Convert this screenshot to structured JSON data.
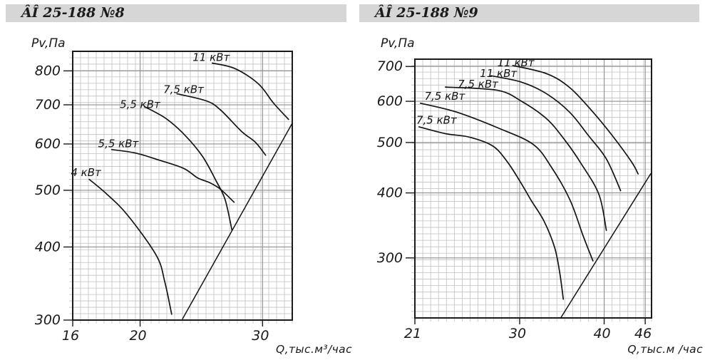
{
  "page": {
    "background": "#ffffff",
    "titlebar_bg": "#d6d6d6",
    "ink": "#1a1a1a",
    "grid_minor_color": "#c0c0c0",
    "grid_major_color": "#8f8f8f"
  },
  "chart_data": [
    {
      "type": "line",
      "title": "ÂÎ 25-188 №8",
      "y_axis_title": "Pv,Па",
      "x_axis_title": "Q,тыс.м³/час",
      "x_scale": "log",
      "y_scale": "log",
      "x_range": [
        16,
        33.1
      ],
      "y_range": [
        300,
        864
      ],
      "x_ticks": [
        16,
        20,
        30
      ],
      "y_ticks": [
        300,
        400,
        500,
        600,
        700,
        800
      ],
      "grid": "on",
      "legend": "inline-labels",
      "curves": [
        {
          "label": "4 кВт",
          "label_at": [
            15.9,
            529
          ],
          "points": [
            [
              16.9,
              522
            ],
            [
              17.9,
              493
            ],
            [
              19.2,
              453
            ],
            [
              21.1,
              387
            ],
            [
              21.7,
              349
            ],
            [
              22.2,
              307
            ]
          ]
        },
        {
          "label": "5,5 кВт",
          "label_at": [
            17.4,
            592
          ],
          "points": [
            [
              18.2,
              587
            ],
            [
              19.7,
              579
            ],
            [
              21.3,
              563
            ],
            [
              23.1,
              545
            ],
            [
              24.2,
              525
            ],
            [
              25.2,
              515
            ],
            [
              26.1,
              502
            ],
            [
              27.3,
              477
            ]
          ]
        },
        {
          "label": "5,5 кВт",
          "label_at": [
            18.7,
            691
          ],
          "points": [
            [
              20.3,
              695
            ],
            [
              21.8,
              663
            ],
            [
              23.2,
              621
            ],
            [
              24.6,
              571
            ],
            [
              25.7,
              520
            ],
            [
              26.5,
              482
            ],
            [
              27.1,
              428
            ]
          ]
        },
        {
          "label": "7,5 кВт",
          "label_at": [
            21.6,
            733
          ],
          "points": [
            [
              22.6,
              731
            ],
            [
              24.9,
              711
            ],
            [
              26.1,
              686
            ],
            [
              28.0,
              630
            ],
            [
              29.3,
              604
            ],
            [
              30.3,
              574
            ]
          ]
        },
        {
          "label": "11 кВт",
          "label_at": [
            23.8,
            832
          ],
          "points": [
            [
              25.4,
              825
            ],
            [
              27.4,
              807
            ],
            [
              29.6,
              760
            ],
            [
              31.1,
              705
            ],
            [
              32.7,
              661
            ]
          ]
        }
      ],
      "system_line": {
        "points": [
          [
            23.0,
            301
          ],
          [
            33.1,
            651
          ]
        ]
      }
    },
    {
      "type": "line",
      "title": "ÂÎ 25-188 №9",
      "y_axis_title": "Pv,Па",
      "x_axis_title": "Q,тыс.м /час",
      "x_scale": "log",
      "y_scale": "log",
      "x_range": [
        21,
        47
      ],
      "y_range": [
        230,
        723
      ],
      "x_ticks": [
        21,
        30,
        40,
        46
      ],
      "y_ticks": [
        300,
        400,
        500,
        600,
        700
      ],
      "grid": "on",
      "legend": "inline-labels",
      "curves": [
        {
          "label": "7,5 кВт",
          "label_at": [
            21.1,
            543
          ],
          "points": [
            [
              21.3,
              536
            ],
            [
              23.3,
              520
            ],
            [
              25.3,
              512
            ],
            [
              27.4,
              492
            ],
            [
              28.8,
              458
            ],
            [
              30.1,
              419
            ],
            [
              31.2,
              387
            ],
            [
              32.6,
              353
            ],
            [
              33.8,
              314
            ],
            [
              34.4,
              280
            ],
            [
              34.8,
              250
            ]
          ]
        },
        {
          "label": "7,5 кВт",
          "label_at": [
            21.7,
            604
          ],
          "points": [
            [
              21.4,
              595
            ],
            [
              24.2,
              572
            ],
            [
              27.9,
              533
            ],
            [
              31.4,
              496
            ],
            [
              33.4,
              449
            ],
            [
              35.6,
              388
            ],
            [
              37.2,
              332
            ],
            [
              38.5,
              296
            ]
          ]
        },
        {
          "label": "7,5 кВт",
          "label_at": [
            24.3,
            637
          ],
          "points": [
            [
              23.3,
              639
            ],
            [
              27.8,
              630
            ],
            [
              30.2,
              600
            ],
            [
              32.9,
              555
            ],
            [
              35.0,
              505
            ],
            [
              37.0,
              455
            ],
            [
              39.3,
              397
            ],
            [
              40.3,
              339
            ]
          ]
        },
        {
          "label": "11 кВт",
          "label_at": [
            26.2,
            668
          ],
          "points": [
            [
              27.2,
              672
            ],
            [
              30.2,
              653
            ],
            [
              32.9,
              620
            ],
            [
              35.6,
              571
            ],
            [
              37.9,
              516
            ],
            [
              40.3,
              465
            ],
            [
              42.3,
              404
            ]
          ]
        },
        {
          "label": "11 кВт",
          "label_at": [
            27.8,
            700
          ],
          "points": [
            [
              29.3,
              703
            ],
            [
              32.9,
              678
            ],
            [
              35.6,
              637
            ],
            [
              38.5,
              572
            ],
            [
              41.1,
              516
            ],
            [
              43.9,
              459
            ],
            [
              44.9,
              435
            ]
          ]
        }
      ],
      "system_line": {
        "points": [
          [
            34.5,
            230
          ],
          [
            46.9,
            436
          ]
        ]
      }
    }
  ]
}
